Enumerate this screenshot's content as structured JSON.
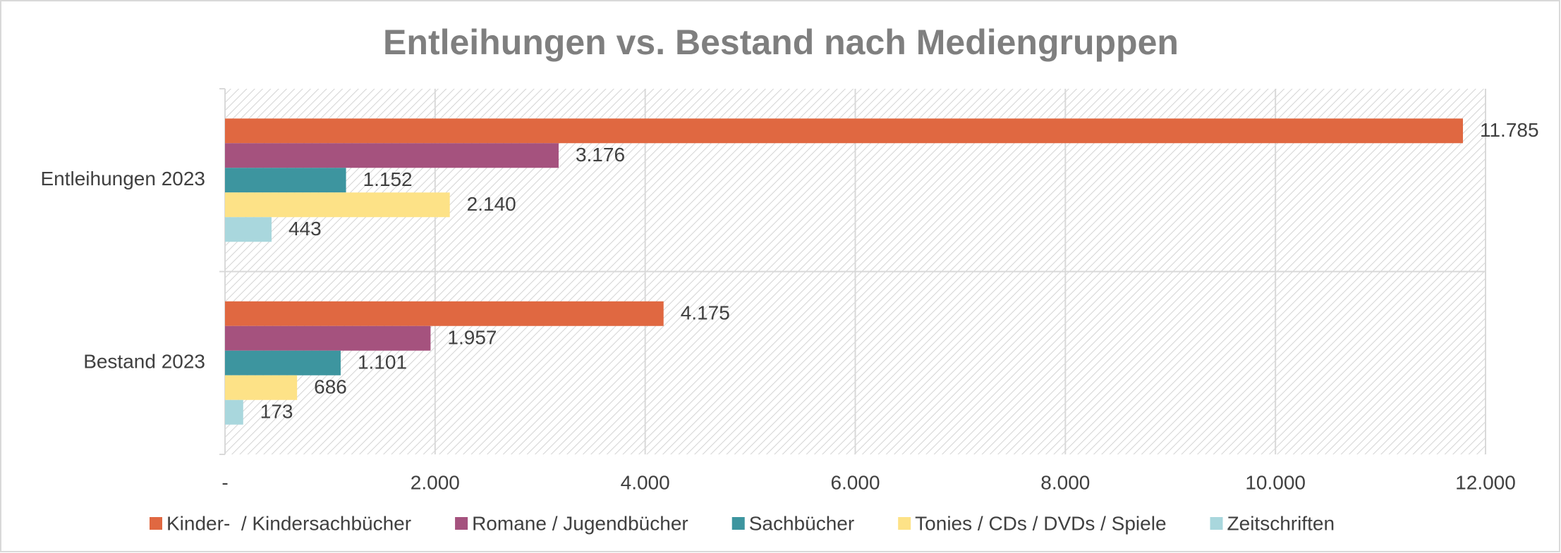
{
  "chart_data": {
    "type": "hbar",
    "title": "Entleihungen vs. Bestand nach Mediengruppen",
    "categories": [
      "Entleihungen 2023",
      "Bestand 2023"
    ],
    "series": [
      {
        "name": "Kinder-  / Kindersachbücher",
        "color": "#e06841",
        "values": [
          11785,
          4175
        ],
        "value_labels": [
          "11.785",
          "4.175"
        ]
      },
      {
        "name": "Romane / Jugendbücher",
        "color": "#a5527e",
        "values": [
          3176,
          1957
        ],
        "value_labels": [
          "3.176",
          "1.957"
        ]
      },
      {
        "name": "Sachbücher",
        "color": "#3d959f",
        "values": [
          1152,
          1101
        ],
        "value_labels": [
          "1.152",
          "1.101"
        ]
      },
      {
        "name": "Tonies / CDs / DVDs / Spiele",
        "color": "#fde287",
        "values": [
          2140,
          686
        ],
        "value_labels": [
          "2.140",
          "686"
        ]
      },
      {
        "name": "Zeitschriften",
        "color": "#a9d7dd",
        "values": [
          443,
          173
        ],
        "value_labels": [
          "443",
          "173"
        ]
      }
    ],
    "xlim": [
      0,
      12000
    ],
    "xticks": [
      {
        "value": 0,
        "label": "-"
      },
      {
        "value": 2000,
        "label": "2.000"
      },
      {
        "value": 4000,
        "label": "4.000"
      },
      {
        "value": 6000,
        "label": "6.000"
      },
      {
        "value": 8000,
        "label": "8.000"
      },
      {
        "value": 10000,
        "label": "10.000"
      },
      {
        "value": 12000,
        "label": "12.000"
      }
    ],
    "grid": true,
    "legend": "bottom"
  }
}
